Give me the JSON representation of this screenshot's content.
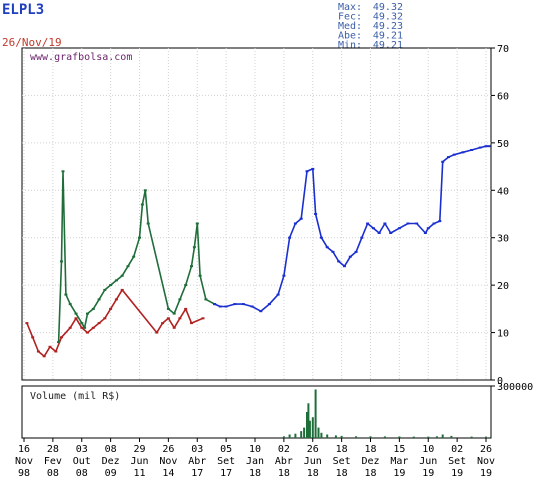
{
  "header": {
    "ticker": "ELPL3",
    "date": "26/Nov/19",
    "stats": [
      {
        "label": "Max:",
        "value": "49.32"
      },
      {
        "label": "Fec:",
        "value": "49.32"
      },
      {
        "label": "Med:",
        "value": "49.23"
      },
      {
        "label": "Abe:",
        "value": "49.21"
      },
      {
        "label": "Min:",
        "value": "49.21"
      }
    ]
  },
  "colors": {
    "ticker": "#1f3fbf",
    "date": "#c0392b",
    "stats": "#3b5ea8",
    "blue_series": "#1a2fd0",
    "green_series": "#1f6e3a",
    "red_series": "#b22222",
    "watermark": "#6a1f6a"
  },
  "chart_data": [
    {
      "type": "line",
      "watermark": "www.grafbolsa.com",
      "ylim": [
        0,
        70
      ],
      "yticks": [
        "0",
        "10",
        "20",
        "30",
        "40",
        "50",
        "60",
        "70"
      ],
      "xticks": [
        {
          "day": "16",
          "month": "Nov",
          "year": "98"
        },
        {
          "day": "28",
          "month": "Fev",
          "year": "08"
        },
        {
          "day": "03",
          "month": "Out",
          "year": "08"
        },
        {
          "day": "08",
          "month": "Dez",
          "year": "09"
        },
        {
          "day": "29",
          "month": "Jun",
          "year": "11"
        },
        {
          "day": "26",
          "month": "Nov",
          "year": "14"
        },
        {
          "day": "03",
          "month": "Abr",
          "year": "17"
        },
        {
          "day": "05",
          "month": "Set",
          "year": "17"
        },
        {
          "day": "10",
          "month": "Jan",
          "year": "18"
        },
        {
          "day": "02",
          "month": "Abr",
          "year": "18"
        },
        {
          "day": "26",
          "month": "Jun",
          "year": "18"
        },
        {
          "day": "18",
          "month": "Set",
          "year": "18"
        },
        {
          "day": "18",
          "month": "Dez",
          "year": "18"
        },
        {
          "day": "15",
          "month": "Mar",
          "year": "19"
        },
        {
          "day": "10",
          "month": "Jun",
          "year": "19"
        },
        {
          "day": "02",
          "month": "Set",
          "year": "19"
        },
        {
          "day": "26",
          "month": "Nov",
          "year": "19"
        }
      ],
      "series": [
        {
          "color_key": "red_series",
          "points": [
            [
              0.1,
              12
            ],
            [
              0.3,
              9
            ],
            [
              0.5,
              6
            ],
            [
              0.7,
              5
            ],
            [
              0.9,
              7
            ],
            [
              1.1,
              6
            ],
            [
              1.3,
              9
            ],
            [
              1.6,
              11
            ],
            [
              1.8,
              13
            ],
            [
              2.0,
              11
            ],
            [
              2.2,
              10
            ],
            [
              2.4,
              11
            ],
            [
              2.6,
              12
            ],
            [
              2.8,
              13
            ],
            [
              3.0,
              15
            ],
            [
              3.2,
              17
            ],
            [
              3.4,
              19
            ],
            [
              4.6,
              10
            ],
            [
              4.8,
              12
            ],
            [
              5.0,
              13
            ],
            [
              5.2,
              11
            ],
            [
              5.4,
              13
            ],
            [
              5.6,
              15
            ],
            [
              5.8,
              12
            ],
            [
              6.2,
              13
            ]
          ]
        },
        {
          "color_key": "green_series",
          "points": [
            [
              1.2,
              8
            ],
            [
              1.3,
              25
            ],
            [
              1.35,
              44
            ],
            [
              1.45,
              18
            ],
            [
              1.6,
              16
            ],
            [
              1.8,
              14
            ],
            [
              2.0,
              12
            ],
            [
              2.1,
              11
            ],
            [
              2.2,
              14
            ],
            [
              2.4,
              15
            ],
            [
              2.6,
              17
            ],
            [
              2.8,
              19
            ],
            [
              3.0,
              20
            ],
            [
              3.2,
              21
            ],
            [
              3.4,
              22
            ],
            [
              3.6,
              24
            ],
            [
              3.8,
              26
            ],
            [
              4.0,
              30
            ],
            [
              4.1,
              37
            ],
            [
              4.2,
              40
            ],
            [
              4.3,
              33
            ],
            [
              5.0,
              15
            ],
            [
              5.2,
              14
            ],
            [
              5.4,
              17
            ],
            [
              5.6,
              20
            ],
            [
              5.8,
              24
            ],
            [
              5.9,
              28
            ],
            [
              6.0,
              33
            ],
            [
              6.1,
              22
            ],
            [
              6.3,
              17
            ],
            [
              6.6,
              16
            ]
          ]
        },
        {
          "color_key": "blue_series",
          "points": [
            [
              6.6,
              16
            ],
            [
              6.8,
              15.5
            ],
            [
              7.0,
              15.5
            ],
            [
              7.3,
              16
            ],
            [
              7.6,
              16
            ],
            [
              7.9,
              15.5
            ],
            [
              8.2,
              14.5
            ],
            [
              8.5,
              16
            ],
            [
              8.8,
              18
            ],
            [
              9.0,
              22
            ],
            [
              9.2,
              30
            ],
            [
              9.4,
              33
            ],
            [
              9.6,
              34
            ],
            [
              9.8,
              44
            ],
            [
              10.0,
              44.5
            ],
            [
              10.1,
              35
            ],
            [
              10.3,
              30
            ],
            [
              10.5,
              28
            ],
            [
              10.7,
              27
            ],
            [
              10.9,
              25
            ],
            [
              11.1,
              24
            ],
            [
              11.3,
              26
            ],
            [
              11.5,
              27
            ],
            [
              11.7,
              30
            ],
            [
              11.9,
              33
            ],
            [
              12.1,
              32
            ],
            [
              12.3,
              31
            ],
            [
              12.5,
              33
            ],
            [
              12.7,
              31
            ],
            [
              13.0,
              32
            ],
            [
              13.3,
              33
            ],
            [
              13.6,
              33
            ],
            [
              13.9,
              31
            ],
            [
              14.0,
              32
            ],
            [
              14.2,
              33
            ],
            [
              14.4,
              33.5
            ],
            [
              14.5,
              46
            ],
            [
              14.7,
              47
            ],
            [
              14.9,
              47.5
            ],
            [
              15.2,
              48
            ],
            [
              15.5,
              48.5
            ],
            [
              15.8,
              49
            ],
            [
              16.0,
              49.3
            ],
            [
              16.1,
              49.3
            ]
          ]
        }
      ]
    },
    {
      "type": "bar",
      "title": "Volume (mil R$)",
      "ylim": [
        0,
        300000
      ],
      "yticks": [
        "300000"
      ],
      "bars": [
        [
          9.0,
          10000
        ],
        [
          9.2,
          20000
        ],
        [
          9.4,
          25000
        ],
        [
          9.6,
          40000
        ],
        [
          9.7,
          60000
        ],
        [
          9.8,
          150000
        ],
        [
          9.85,
          200000
        ],
        [
          9.9,
          100000
        ],
        [
          10.0,
          120000
        ],
        [
          10.1,
          280000
        ],
        [
          10.2,
          60000
        ],
        [
          10.3,
          30000
        ],
        [
          10.5,
          20000
        ],
        [
          10.8,
          15000
        ],
        [
          11.0,
          12000
        ],
        [
          11.5,
          10000
        ],
        [
          12.0,
          10000
        ],
        [
          12.5,
          9000
        ],
        [
          13.0,
          9000
        ],
        [
          13.5,
          8000
        ],
        [
          14.0,
          8000
        ],
        [
          14.3,
          10000
        ],
        [
          14.5,
          20000
        ],
        [
          14.8,
          12000
        ],
        [
          15.5,
          8000
        ],
        [
          16.0,
          8000
        ]
      ]
    }
  ]
}
